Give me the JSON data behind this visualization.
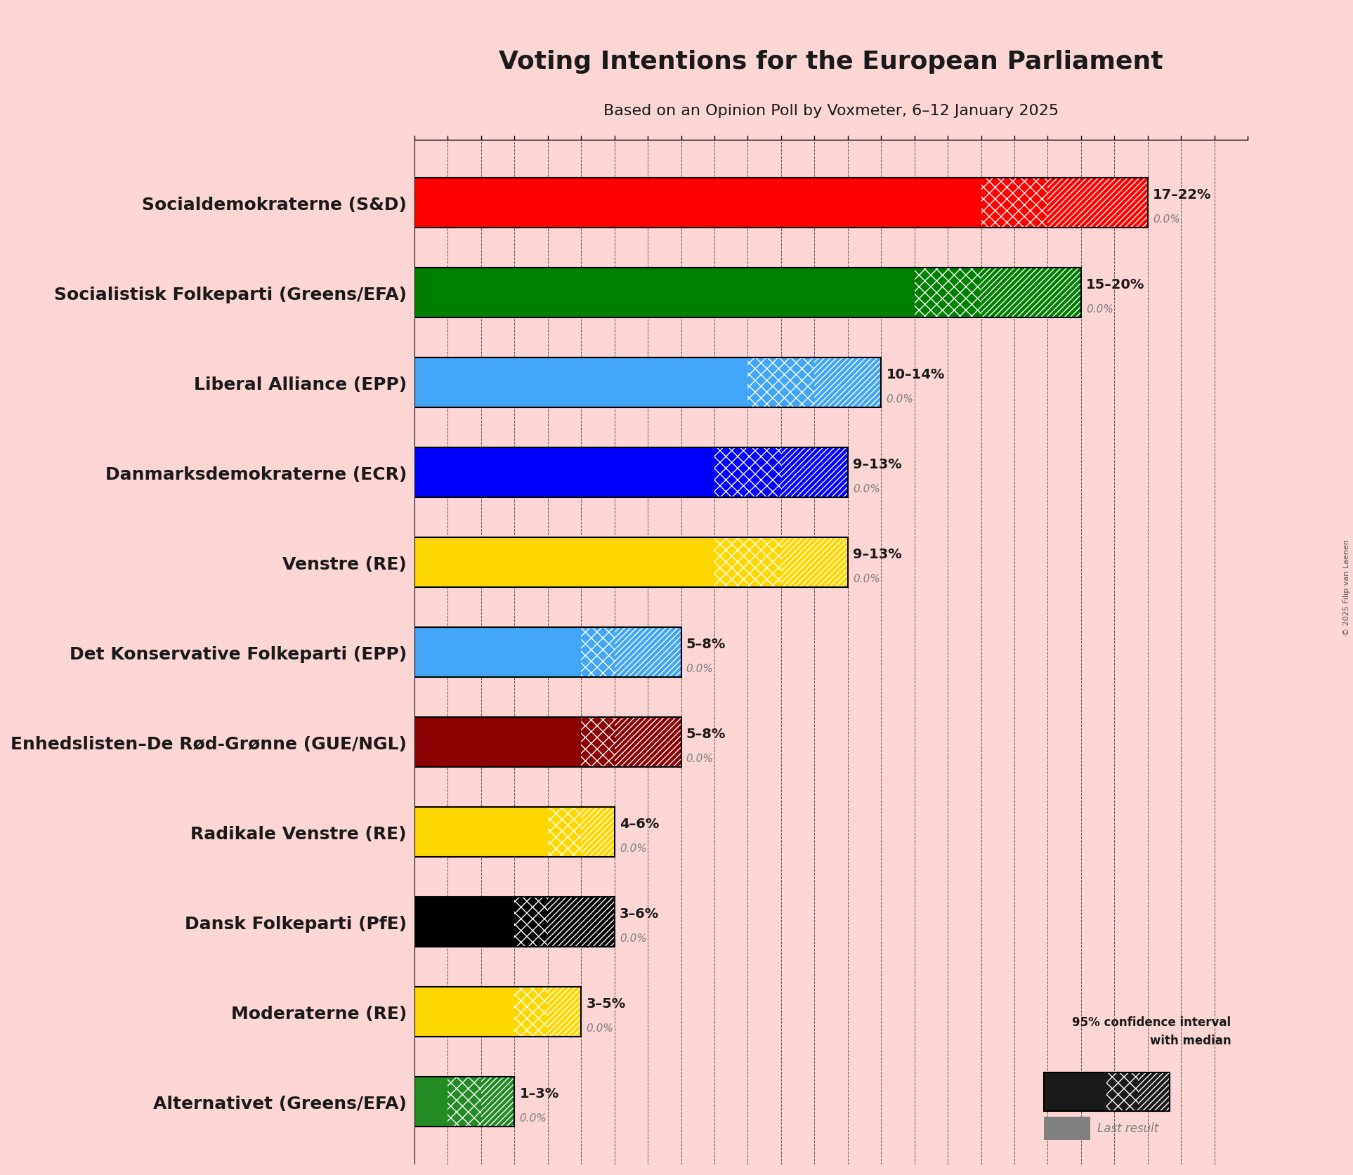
{
  "title": "Voting Intentions for the European Parliament",
  "subtitle": "Based on an Opinion Poll by Voxmeter, 6–12 January 2025",
  "copyright": "© 2025 Filip van Laenen",
  "background_color": "#fcd5d5",
  "parties": [
    {
      "name": "Socialdemokraterne (S&D)",
      "low": 17,
      "high": 22,
      "median": 19,
      "last": 0.0,
      "color": "#FF0000",
      "text": "17–22%"
    },
    {
      "name": "Socialistisk Folkeparti (Greens/EFA)",
      "low": 15,
      "high": 20,
      "median": 17,
      "last": 0.0,
      "color": "#008000",
      "text": "15–20%"
    },
    {
      "name": "Liberal Alliance (EPP)",
      "low": 10,
      "high": 14,
      "median": 12,
      "last": 0.0,
      "color": "#42A5F5",
      "text": "10–14%"
    },
    {
      "name": "Danmarksdemokraterne (ECR)",
      "low": 9,
      "high": 13,
      "median": 11,
      "last": 0.0,
      "color": "#0000FF",
      "text": "9–13%"
    },
    {
      "name": "Venstre (RE)",
      "low": 9,
      "high": 13,
      "median": 11,
      "last": 0.0,
      "color": "#FFD700",
      "text": "9–13%"
    },
    {
      "name": "Det Konservative Folkeparti (EPP)",
      "low": 5,
      "high": 8,
      "median": 6,
      "last": 0.0,
      "color": "#42A5F5",
      "text": "5–8%"
    },
    {
      "name": "Enhedslisten–De Rød-Grønne (GUE/NGL)",
      "low": 5,
      "high": 8,
      "median": 6,
      "last": 0.0,
      "color": "#8B0000",
      "text": "5–8%"
    },
    {
      "name": "Radikale Venstre (RE)",
      "low": 4,
      "high": 6,
      "median": 5,
      "last": 0.0,
      "color": "#FFD700",
      "text": "4–6%"
    },
    {
      "name": "Dansk Folkeparti (PfE)",
      "low": 3,
      "high": 6,
      "median": 4,
      "last": 0.0,
      "color": "#000000",
      "text": "3–6%"
    },
    {
      "name": "Moderaterne (RE)",
      "low": 3,
      "high": 5,
      "median": 4,
      "last": 0.0,
      "color": "#FFD700",
      "text": "3–5%"
    },
    {
      "name": "Alternativet (Greens/EFA)",
      "low": 1,
      "high": 3,
      "median": 2,
      "last": 0.0,
      "color": "#228B22",
      "text": "1–3%"
    }
  ],
  "xlim": [
    0,
    25
  ],
  "bar_height": 0.55,
  "label_fontsize": 18,
  "title_fontsize": 26,
  "subtitle_fontsize": 16
}
